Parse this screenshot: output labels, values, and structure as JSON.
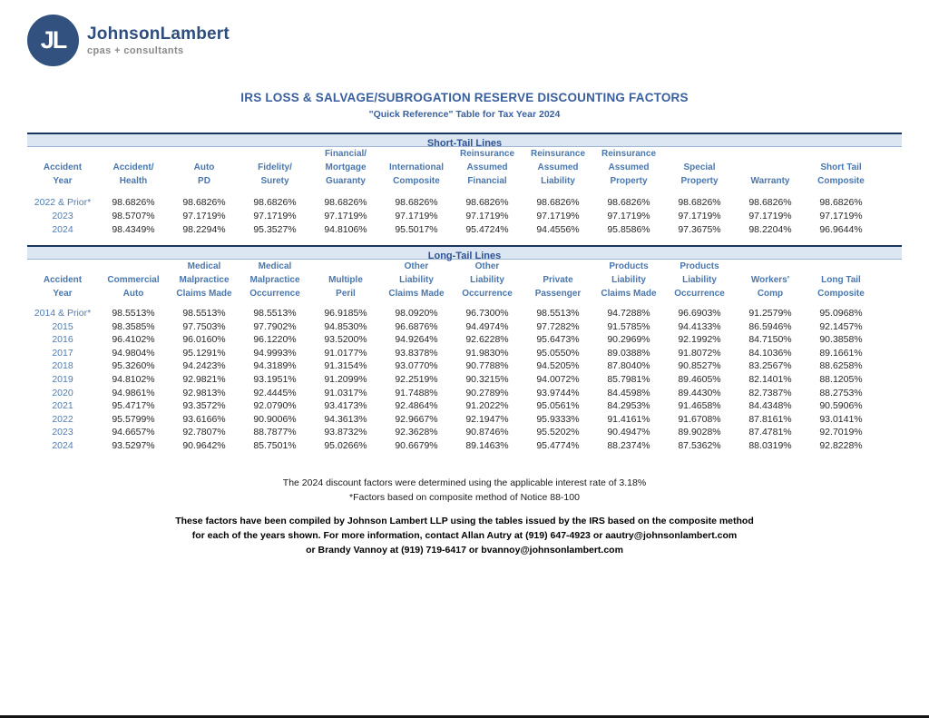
{
  "header": {
    "brand": "JohnsonLambert",
    "tagline": "cpas + consultants",
    "monogram": "JL"
  },
  "title": "IRS LOSS & SALVAGE/SUBROGATION RESERVE DISCOUNTING FACTORS",
  "subtitle": "\"Quick Reference\" Table for Tax Year 2024",
  "colors": {
    "brand_navy": "#33517e",
    "title_blue": "#3a5f9e",
    "header_blue": "#4a77ad",
    "band_background": "#dce6f2",
    "band_border": "#17365d",
    "year_blue": "#527cb2",
    "value_text": "#262626"
  },
  "short_tail": {
    "section_label": "Short-Tail Lines",
    "columns": [
      [
        "Accident",
        "Year"
      ],
      [
        "Accident/",
        "Health"
      ],
      [
        "Auto",
        "PD"
      ],
      [
        "Fidelity/",
        "Surety"
      ],
      [
        "Financial/",
        "Mortgage",
        "Guaranty"
      ],
      [
        "International",
        "Composite"
      ],
      [
        "Reinsurance",
        "Assumed",
        "Financial"
      ],
      [
        "Reinsurance",
        "Assumed",
        "Liability"
      ],
      [
        "Reinsurance",
        "Assumed",
        "Property"
      ],
      [
        "Special",
        "Property"
      ],
      [
        "Warranty"
      ],
      [
        "Short Tail",
        "Composite"
      ]
    ],
    "rows": [
      {
        "year": "2022 & Prior*",
        "values": [
          "98.6826%",
          "98.6826%",
          "98.6826%",
          "98.6826%",
          "98.6826%",
          "98.6826%",
          "98.6826%",
          "98.6826%",
          "98.6826%",
          "98.6826%",
          "98.6826%"
        ]
      },
      {
        "year": "2023",
        "values": [
          "98.5707%",
          "97.1719%",
          "97.1719%",
          "97.1719%",
          "97.1719%",
          "97.1719%",
          "97.1719%",
          "97.1719%",
          "97.1719%",
          "97.1719%",
          "97.1719%"
        ]
      },
      {
        "year": "2024",
        "values": [
          "98.4349%",
          "98.2294%",
          "95.3527%",
          "94.8106%",
          "95.5017%",
          "95.4724%",
          "94.4556%",
          "95.8586%",
          "97.3675%",
          "98.2204%",
          "96.9644%"
        ]
      }
    ]
  },
  "long_tail": {
    "section_label": "Long-Tail Lines",
    "columns": [
      [
        "Accident",
        "Year"
      ],
      [
        "Commercial",
        "Auto"
      ],
      [
        "Medical",
        "Malpractice",
        "Claims Made"
      ],
      [
        "Medical",
        "Malpractice",
        "Occurrence"
      ],
      [
        "Multiple",
        "Peril"
      ],
      [
        "Other",
        "Liability",
        "Claims Made"
      ],
      [
        "Other",
        "Liability",
        "Occurrence"
      ],
      [
        "Private",
        "Passenger"
      ],
      [
        "Products",
        "Liability",
        "Claims Made"
      ],
      [
        "Products",
        "Liability",
        "Occurrence"
      ],
      [
        "Workers'",
        "Comp"
      ],
      [
        "Long Tail",
        "Composite"
      ]
    ],
    "rows": [
      {
        "year": "2014 & Prior*",
        "values": [
          "98.5513%",
          "98.5513%",
          "98.5513%",
          "96.9185%",
          "98.0920%",
          "96.7300%",
          "98.5513%",
          "94.7288%",
          "96.6903%",
          "91.2579%",
          "95.0968%"
        ]
      },
      {
        "year": "2015",
        "values": [
          "98.3585%",
          "97.7503%",
          "97.7902%",
          "94.8530%",
          "96.6876%",
          "94.4974%",
          "97.7282%",
          "91.5785%",
          "94.4133%",
          "86.5946%",
          "92.1457%"
        ]
      },
      {
        "year": "2016",
        "values": [
          "96.4102%",
          "96.0160%",
          "96.1220%",
          "93.5200%",
          "94.9264%",
          "92.6228%",
          "95.6473%",
          "90.2969%",
          "92.1992%",
          "84.7150%",
          "90.3858%"
        ]
      },
      {
        "year": "2017",
        "values": [
          "94.9804%",
          "95.1291%",
          "94.9993%",
          "91.0177%",
          "93.8378%",
          "91.9830%",
          "95.0550%",
          "89.0388%",
          "91.8072%",
          "84.1036%",
          "89.1661%"
        ]
      },
      {
        "year": "2018",
        "values": [
          "95.3260%",
          "94.2423%",
          "94.3189%",
          "91.3154%",
          "93.0770%",
          "90.7788%",
          "94.5205%",
          "87.8040%",
          "90.8527%",
          "83.2567%",
          "88.6258%"
        ]
      },
      {
        "year": "2019",
        "values": [
          "94.8102%",
          "92.9821%",
          "93.1951%",
          "91.2099%",
          "92.2519%",
          "90.3215%",
          "94.0072%",
          "85.7981%",
          "89.4605%",
          "82.1401%",
          "88.1205%"
        ]
      },
      {
        "year": "2020",
        "values": [
          "94.9861%",
          "92.9813%",
          "92.4445%",
          "91.0317%",
          "91.7488%",
          "90.2789%",
          "93.9744%",
          "84.4598%",
          "89.4430%",
          "82.7387%",
          "88.2753%"
        ]
      },
      {
        "year": "2021",
        "values": [
          "95.4717%",
          "93.3572%",
          "92.0790%",
          "93.4173%",
          "92.4864%",
          "91.2022%",
          "95.0561%",
          "84.2953%",
          "91.4658%",
          "84.4348%",
          "90.5906%"
        ]
      },
      {
        "year": "2022",
        "values": [
          "95.5799%",
          "93.6166%",
          "90.9006%",
          "94.3613%",
          "92.9667%",
          "92.1947%",
          "95.9333%",
          "91.4161%",
          "91.6708%",
          "87.8161%",
          "93.0141%"
        ]
      },
      {
        "year": "2023",
        "values": [
          "94.6657%",
          "92.7807%",
          "88.7877%",
          "93.8732%",
          "92.3628%",
          "90.8746%",
          "95.5202%",
          "90.4947%",
          "89.9028%",
          "87.4781%",
          "92.7019%"
        ]
      },
      {
        "year": "2024",
        "values": [
          "93.5297%",
          "90.9642%",
          "85.7501%",
          "95.0266%",
          "90.6679%",
          "89.1463%",
          "95.4774%",
          "88.2374%",
          "87.5362%",
          "88.0319%",
          "92.8228%"
        ]
      }
    ]
  },
  "notes": [
    "The 2024 discount factors were determined using the applicable interest rate of 3.18%",
    "*Factors based on composite method of Notice 88-100"
  ],
  "footer_lines": [
    "These factors have been compiled by Johnson Lambert LLP using the tables issued by the IRS based on the composite method",
    "for each of the years shown.  For more information, contact Allan Autry at (919) 647-4923 or aautry@johnsonlambert.com",
    "or Brandy Vannoy at (919) 719-6417 or bvannoy@johnsonlambert.com"
  ]
}
